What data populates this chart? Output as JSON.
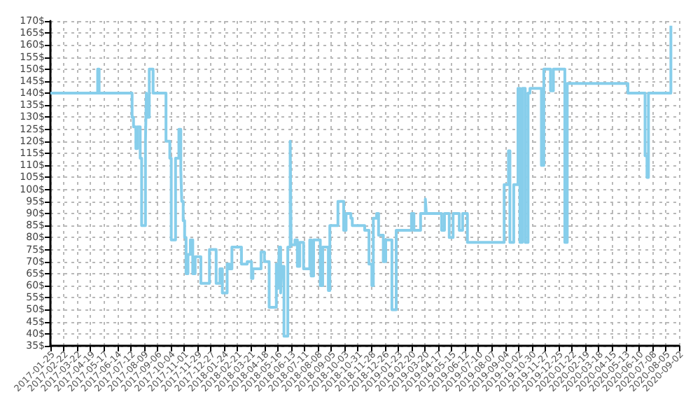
{
  "chart_data": {
    "type": "step",
    "color": "#87ceeb",
    "grid": true,
    "line_style": "solid",
    "marker": "none",
    "xlim": [
      "2017-01-25",
      "2020-09-02"
    ],
    "xticks": [
      "2017-01-25",
      "2017-02-22",
      "2017-03-22",
      "2017-04-19",
      "2017-05-17",
      "2017-06-14",
      "2017-07-12",
      "2017-08-09",
      "2017-09-06",
      "2017-10-04",
      "2017-11-01",
      "2017-11-29",
      "2017-12-27",
      "2018-01-24",
      "2018-02-21",
      "2018-03-21",
      "2018-04-18",
      "2018-05-16",
      "2018-06-13",
      "2018-07-11",
      "2018-08-08",
      "2018-09-05",
      "2018-10-03",
      "2018-10-31",
      "2018-11-28",
      "2018-12-26",
      "2019-01-23",
      "2019-02-20",
      "2019-03-20",
      "2019-04-17",
      "2019-05-15",
      "2019-06-12",
      "2019-07-10",
      "2019-08-07",
      "2019-09-04",
      "2019-10-02",
      "2019-10-30",
      "2019-11-27",
      "2019-12-25",
      "2020-01-22",
      "2020-02-19",
      "2020-03-18",
      "2020-04-15",
      "2020-05-13",
      "2020-06-10",
      "2020-07-08",
      "2020-08-05",
      "2020-09-02"
    ],
    "ylim": [
      35,
      170
    ],
    "yticks": [
      {
        "value": 35,
        "label": "35$"
      },
      {
        "value": 40,
        "label": "40$"
      },
      {
        "value": 45,
        "label": "45$"
      },
      {
        "value": 50,
        "label": "50$"
      },
      {
        "value": 55,
        "label": "55$"
      },
      {
        "value": 60,
        "label": "60$"
      },
      {
        "value": 65,
        "label": "65$"
      },
      {
        "value": 70,
        "label": "70$"
      },
      {
        "value": 75,
        "label": "75$"
      },
      {
        "value": 80,
        "label": "80$"
      },
      {
        "value": 85,
        "label": "85$"
      },
      {
        "value": 90,
        "label": "90$"
      },
      {
        "value": 95,
        "label": "95$"
      },
      {
        "value": 100,
        "label": "100$"
      },
      {
        "value": 105,
        "label": "105$"
      },
      {
        "value": 110,
        "label": "110$"
      },
      {
        "value": 115,
        "label": "115$"
      },
      {
        "value": 120,
        "label": "120$"
      },
      {
        "value": 125,
        "label": "125$"
      },
      {
        "value": 130,
        "label": "130$"
      },
      {
        "value": 135,
        "label": "135$"
      },
      {
        "value": 140,
        "label": "140$"
      },
      {
        "value": 145,
        "label": "145$"
      },
      {
        "value": 150,
        "label": "150$"
      },
      {
        "value": 155,
        "label": "155$"
      },
      {
        "value": 160,
        "label": "160$"
      },
      {
        "value": 165,
        "label": "165$"
      },
      {
        "value": 170,
        "label": "170$"
      }
    ],
    "x": [
      "2017-01-25",
      "2017-05-04",
      "2017-05-07",
      "2017-07-15",
      "2017-07-18",
      "2017-07-23",
      "2017-07-26",
      "2017-08-01",
      "2017-08-04",
      "2017-08-12",
      "2017-08-14",
      "2017-08-15",
      "2017-08-20",
      "2017-08-28",
      "2017-09-24",
      "2017-10-02",
      "2017-10-05",
      "2017-10-14",
      "2017-10-21",
      "2017-10-25",
      "2017-10-27",
      "2017-10-30",
      "2017-11-02",
      "2017-11-05",
      "2017-11-09",
      "2017-11-14",
      "2017-11-19",
      "2017-11-24",
      "2017-12-06",
      "2017-12-24",
      "2018-01-07",
      "2018-01-15",
      "2018-01-20",
      "2018-01-30",
      "2018-02-04",
      "2018-02-09",
      "2018-03-01",
      "2018-03-13",
      "2018-03-22",
      "2018-03-25",
      "2018-04-11",
      "2018-04-18",
      "2018-04-28",
      "2018-05-13",
      "2018-05-17",
      "2018-05-19",
      "2018-05-22",
      "2018-05-24",
      "2018-05-29",
      "2018-06-06",
      "2018-06-11",
      "2018-06-13",
      "2018-06-21",
      "2018-06-26",
      "2018-07-01",
      "2018-07-09",
      "2018-07-22",
      "2018-07-25",
      "2018-07-30",
      "2018-08-13",
      "2018-08-18",
      "2018-08-30",
      "2018-09-02",
      "2018-09-19",
      "2018-10-01",
      "2018-10-06",
      "2018-10-16",
      "2018-10-19",
      "2018-11-14",
      "2018-11-23",
      "2018-11-29",
      "2018-12-02",
      "2018-12-09",
      "2018-12-13",
      "2018-12-23",
      "2018-12-28",
      "2019-01-10",
      "2019-01-19",
      "2019-02-20",
      "2019-02-25",
      "2019-03-11",
      "2019-03-21",
      "2019-03-23",
      "2019-04-24",
      "2019-04-30",
      "2019-05-10",
      "2019-05-18",
      "2019-05-31",
      "2019-06-07",
      "2019-06-17",
      "2019-09-02",
      "2019-09-11",
      "2019-09-14",
      "2019-09-22",
      "2019-10-01",
      "2019-10-05",
      "2019-10-10",
      "2019-10-16",
      "2019-10-22",
      "2019-10-26",
      "2019-11-19",
      "2019-11-24",
      "2019-12-08",
      "2019-12-14",
      "2020-01-07",
      "2020-01-12",
      "2020-05-18",
      "2020-06-23",
      "2020-06-27",
      "2020-06-30",
      "2020-08-16"
    ],
    "values": [
      140,
      150,
      140,
      130,
      126,
      117,
      126,
      113,
      85,
      120,
      140,
      130,
      150,
      140,
      120,
      113,
      79,
      113,
      125,
      108,
      95,
      87,
      80,
      65,
      73,
      79,
      65,
      72,
      61,
      75,
      61,
      67,
      57,
      69,
      67,
      76,
      69,
      70,
      63,
      67,
      74,
      70,
      51,
      69,
      59,
      76,
      57,
      68,
      39,
      76,
      120,
      77,
      79,
      68,
      78,
      67,
      79,
      64,
      79,
      60,
      76,
      58,
      85,
      95,
      83,
      90,
      88,
      85,
      83,
      69,
      60,
      88,
      90,
      81,
      70,
      79,
      50,
      83,
      90,
      83,
      90,
      96,
      90,
      83,
      90,
      80,
      90,
      83,
      90,
      78,
      102,
      116,
      78,
      102,
      142,
      78,
      142,
      78,
      140,
      142,
      110,
      150,
      141,
      150,
      78,
      144,
      140,
      114,
      105,
      140,
      168
    ]
  }
}
